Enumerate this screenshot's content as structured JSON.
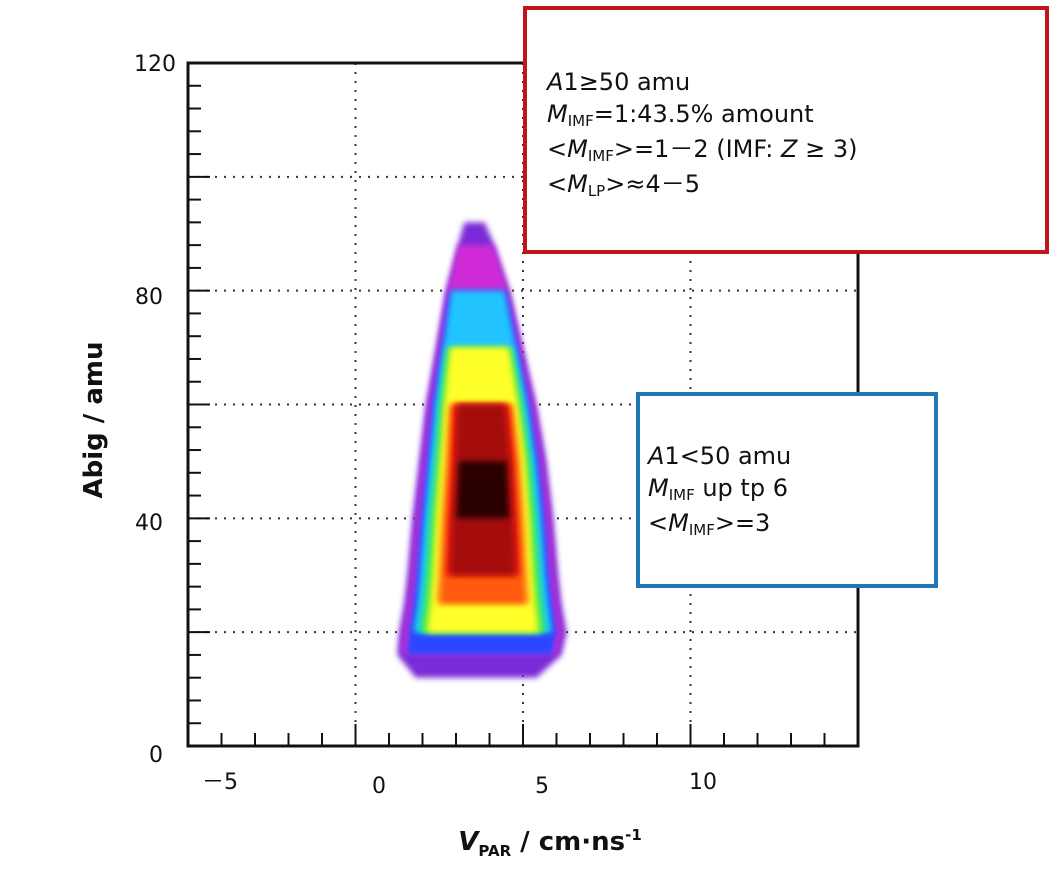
{
  "chart_data": {
    "type": "heatmap",
    "xlabel": {
      "main": "V",
      "sub": "PAR",
      "rest": " / cm·ns",
      "sup": "-1"
    },
    "ylabel": "Abig / amu",
    "xlim": [
      -5,
      15
    ],
    "ylim": [
      0,
      120
    ],
    "x_ticks": [
      "－5",
      "0",
      "5",
      "10"
    ],
    "y_ticks": [
      "0",
      "40",
      "80",
      "120"
    ],
    "grid": true,
    "colormap": [
      "#7a2bd6",
      "#d02bd6",
      "#2a46ff",
      "#23c4ff",
      "#17e0a8",
      "#78ee2c",
      "#ffff2a",
      "#ffb21c",
      "#ff5a10",
      "#e3140e",
      "#a5080a",
      "#2a0303"
    ],
    "density_profile": [
      {
        "y": 12,
        "center": 3.6,
        "halfwidth": 1.8,
        "level": 0.05
      },
      {
        "y": 16,
        "center": 3.7,
        "halfwidth": 2.45,
        "level": 0.2
      },
      {
        "y": 20,
        "center": 3.8,
        "halfwidth": 2.5,
        "level": 0.5
      },
      {
        "y": 25,
        "center": 3.8,
        "halfwidth": 2.35,
        "level": 0.7
      },
      {
        "y": 30,
        "center": 3.8,
        "halfwidth": 2.25,
        "level": 0.85
      },
      {
        "y": 40,
        "center": 3.8,
        "halfwidth": 2.1,
        "level": 0.95
      },
      {
        "y": 50,
        "center": 3.8,
        "halfwidth": 1.9,
        "level": 1.0
      },
      {
        "y": 60,
        "center": 3.75,
        "halfwidth": 1.65,
        "level": 0.85
      },
      {
        "y": 70,
        "center": 3.7,
        "halfwidth": 1.3,
        "level": 0.55
      },
      {
        "y": 80,
        "center": 3.65,
        "halfwidth": 0.95,
        "level": 0.3
      },
      {
        "y": 88,
        "center": 3.6,
        "halfwidth": 0.55,
        "level": 0.12
      },
      {
        "y": 92,
        "center": 3.55,
        "halfwidth": 0.3,
        "level": 0.04
      }
    ]
  },
  "annotations": {
    "red_box": {
      "border_color": "#c0151a",
      "line1": {
        "italic": "A",
        "rest": "1≥50 amu"
      },
      "line2": {
        "italic": "M",
        "sub": "IMF",
        "rest": "=1:43.5% amount"
      },
      "line3": {
        "pre": "<",
        "italic": "M",
        "sub": "IMF",
        "mid": ">=1－2 (IMF: ",
        "italic2": "Z",
        "rest": " ≥ 3)"
      },
      "line4": {
        "pre": "<",
        "italic": "M",
        "sub": "LP",
        "rest": ">≈4－5"
      }
    },
    "blue_box": {
      "border_color": "#1f78b4",
      "line1": {
        "italic": "A",
        "rest": "1<50 amu"
      },
      "line2": {
        "italic": "M",
        "sub": "IMF",
        "rest": " up tp 6"
      },
      "line3": {
        "pre": "<",
        "italic": "M",
        "sub": "IMF",
        "rest": ">=3"
      }
    }
  }
}
